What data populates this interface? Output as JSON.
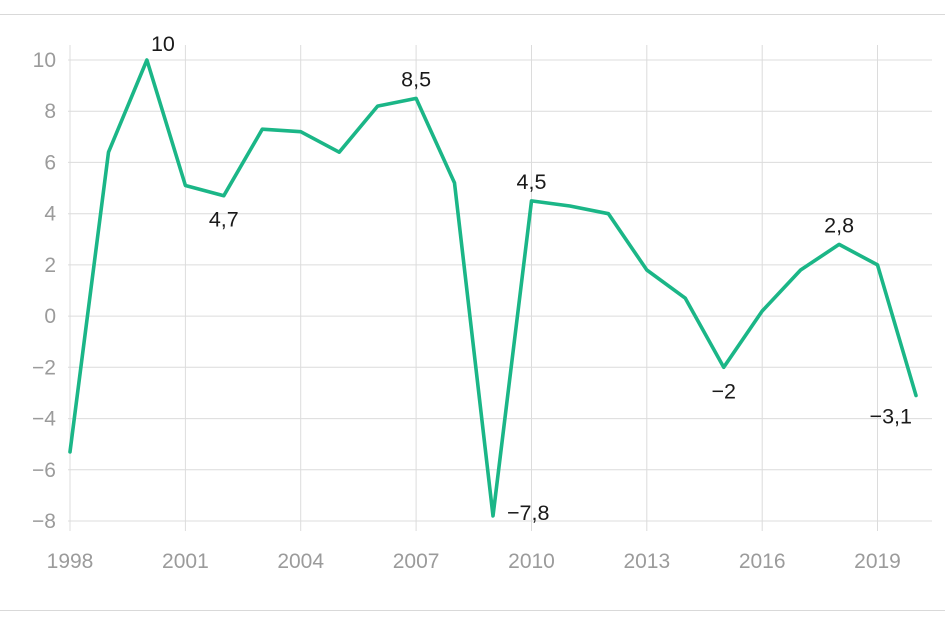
{
  "chart_data": {
    "type": "line",
    "x": [
      1998,
      1999,
      2000,
      2001,
      2002,
      2003,
      2004,
      2005,
      2006,
      2007,
      2008,
      2009,
      2010,
      2011,
      2012,
      2013,
      2014,
      2015,
      2016,
      2017,
      2018,
      2019,
      2020
    ],
    "values": [
      -5.3,
      6.4,
      10,
      5.1,
      4.7,
      7.3,
      7.2,
      6.4,
      8.2,
      8.5,
      5.2,
      -7.8,
      4.5,
      4.3,
      4.0,
      1.8,
      0.7,
      -2,
      0.2,
      1.8,
      2.8,
      2.0,
      -3.1
    ],
    "title": "",
    "xlabel": "",
    "ylabel": "",
    "xlim": [
      1998,
      2020
    ],
    "ylim": [
      -8,
      10
    ],
    "y_ticks": [
      10,
      8,
      6,
      4,
      2,
      0,
      -2,
      -4,
      -6,
      -8
    ],
    "x_ticks": [
      1998,
      2001,
      2004,
      2007,
      2010,
      2013,
      2016,
      2019
    ],
    "grid": true,
    "legend": null,
    "annotations": [
      {
        "x": 2000,
        "y": 10,
        "label": "10",
        "position": "above-right"
      },
      {
        "x": 2002,
        "y": 4.7,
        "label": "4,7",
        "position": "below"
      },
      {
        "x": 2007,
        "y": 8.5,
        "label": "8,5",
        "position": "above"
      },
      {
        "x": 2009,
        "y": -7.8,
        "label": "−7,8",
        "position": "right"
      },
      {
        "x": 2010,
        "y": 4.5,
        "label": "4,5",
        "position": "above"
      },
      {
        "x": 2015,
        "y": -2,
        "label": "−2",
        "position": "below"
      },
      {
        "x": 2018,
        "y": 2.8,
        "label": "2,8",
        "position": "above"
      },
      {
        "x": 2020,
        "y": -3.1,
        "label": "−3,1",
        "position": "below-left"
      }
    ]
  },
  "colors": {
    "line": "#1bb687",
    "grid": "#dcdcdc",
    "axis_text": "#9b9b9b",
    "label_text": "#1a1a1a",
    "rule": "#d9d9d9",
    "background": "#ffffff"
  }
}
